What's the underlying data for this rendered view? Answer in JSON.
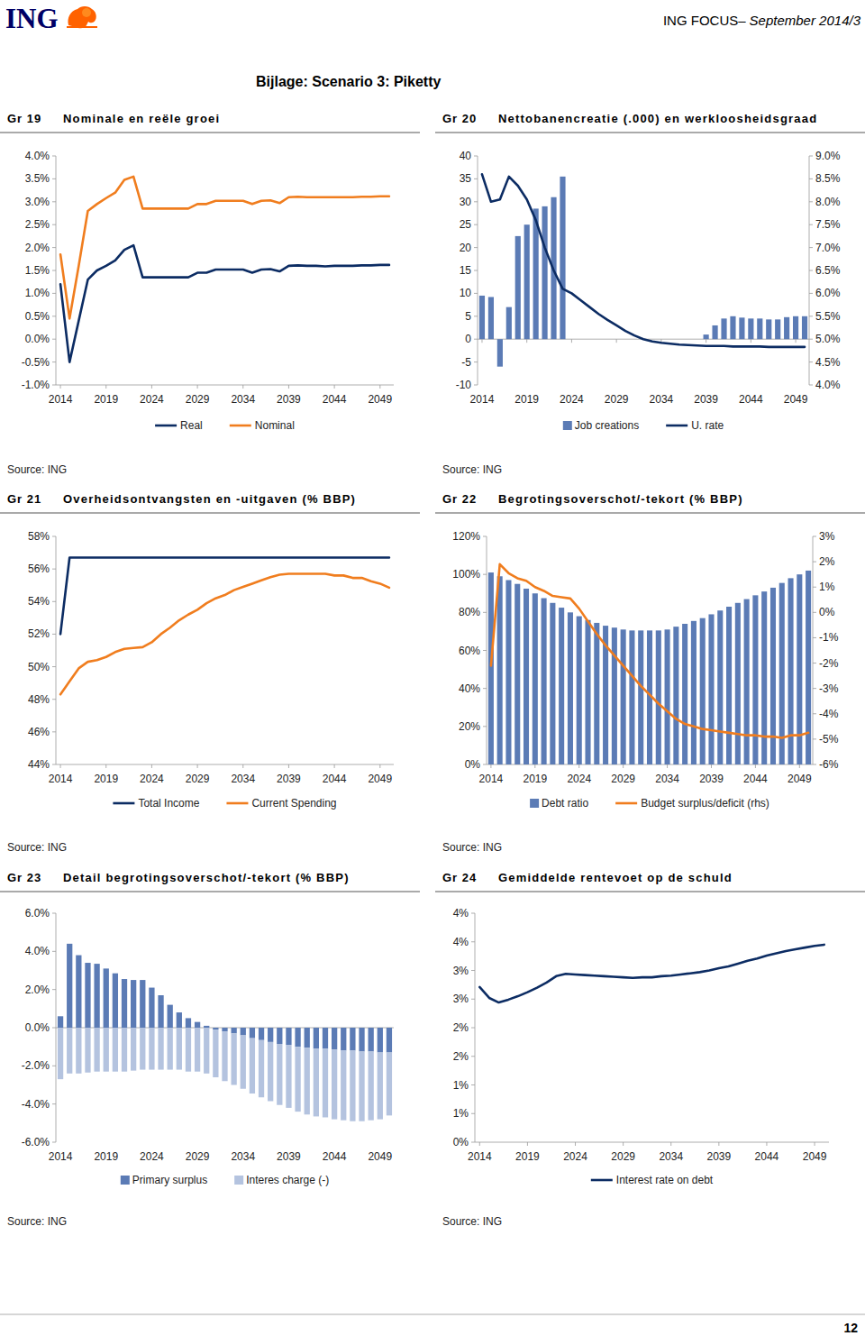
{
  "page": {
    "logo": "ING",
    "header_title": "ING FOCUS–",
    "header_issue": "September 2014/3",
    "heading": "Bijlage: Scenario 3: Piketty",
    "page_number": "12"
  },
  "chart_data": [
    {
      "type": "line",
      "label": "Gr 19",
      "title": "Nominale en reële groei",
      "source": "Source: ING",
      "x": [
        2014,
        2015,
        2016,
        2017,
        2018,
        2019,
        2020,
        2021,
        2022,
        2023,
        2024,
        2025,
        2026,
        2027,
        2028,
        2029,
        2030,
        2031,
        2032,
        2033,
        2034,
        2035,
        2036,
        2037,
        2038,
        2039,
        2040,
        2041,
        2042,
        2043,
        2044,
        2045,
        2046,
        2047,
        2048,
        2049,
        2050
      ],
      "xlim": [
        2013.5,
        2050.5
      ],
      "xticks": [
        2014,
        2019,
        2024,
        2029,
        2034,
        2039,
        2044,
        2049
      ],
      "ylim": [
        -1,
        4
      ],
      "yticks": [
        {
          "value": -1,
          "label": "-1.0%"
        },
        {
          "value": -0.5,
          "label": "-0.5%"
        },
        {
          "value": 0,
          "label": "0.0%"
        },
        {
          "value": 0.5,
          "label": "0.5%"
        },
        {
          "value": 1,
          "label": "1.0%"
        },
        {
          "value": 1.5,
          "label": "1.5%"
        },
        {
          "value": 2,
          "label": "2.0%"
        },
        {
          "value": 2.5,
          "label": "2.5%"
        },
        {
          "value": 3,
          "label": "3.0%"
        },
        {
          "value": 3.5,
          "label": "3.5%"
        },
        {
          "value": 4,
          "label": "4.0%"
        }
      ],
      "grid": false,
      "legend": "bottom",
      "series": [
        {
          "name": "Real",
          "color": "#0c2c63",
          "values": [
            1.2,
            -0.5,
            0.4,
            1.3,
            1.5,
            1.6,
            1.72,
            1.95,
            2.05,
            1.35,
            1.35,
            1.35,
            1.35,
            1.35,
            1.35,
            1.45,
            1.45,
            1.52,
            1.52,
            1.52,
            1.52,
            1.45,
            1.52,
            1.53,
            1.48,
            1.6,
            1.61,
            1.6,
            1.6,
            1.59,
            1.6,
            1.6,
            1.6,
            1.61,
            1.61,
            1.62,
            1.62
          ]
        },
        {
          "name": "Nominal",
          "color": "#f07d1e",
          "values": [
            1.85,
            0.45,
            1.6,
            2.8,
            2.95,
            3.08,
            3.2,
            3.48,
            3.55,
            2.85,
            2.85,
            2.85,
            2.85,
            2.85,
            2.85,
            2.95,
            2.95,
            3.02,
            3.02,
            3.02,
            3.02,
            2.95,
            3.02,
            3.03,
            2.97,
            3.1,
            3.11,
            3.1,
            3.1,
            3.1,
            3.1,
            3.1,
            3.1,
            3.11,
            3.11,
            3.12,
            3.12
          ]
        }
      ]
    },
    {
      "type": "bar",
      "label": "Gr 20",
      "title": "Nettobanencreatie (.000) en werkloosheidsgraad",
      "source": "Source: ING",
      "x": [
        2014,
        2015,
        2016,
        2017,
        2018,
        2019,
        2020,
        2021,
        2022,
        2023,
        2024,
        2025,
        2026,
        2027,
        2028,
        2029,
        2030,
        2031,
        2032,
        2033,
        2034,
        2035,
        2036,
        2037,
        2038,
        2039,
        2040,
        2041,
        2042,
        2043,
        2044,
        2045,
        2046,
        2047,
        2048,
        2049,
        2050
      ],
      "xlim": [
        2013.5,
        2050.5
      ],
      "xticks": [
        2014,
        2019,
        2024,
        2029,
        2034,
        2039,
        2044,
        2049
      ],
      "ylim": [
        -10,
        40
      ],
      "yticks": [
        -10,
        -5,
        0,
        5,
        10,
        15,
        20,
        25,
        30,
        35,
        40
      ],
      "y2lim": [
        4,
        9
      ],
      "y2ticks": [
        {
          "value": 4,
          "label": "4.0%"
        },
        {
          "value": 4.5,
          "label": "4.5%"
        },
        {
          "value": 5,
          "label": "5.0%"
        },
        {
          "value": 5.5,
          "label": "5.5%"
        },
        {
          "value": 6,
          "label": "6.0%"
        },
        {
          "value": 6.5,
          "label": "6.5%"
        },
        {
          "value": 7,
          "label": "7.0%"
        },
        {
          "value": 7.5,
          "label": "7.5%"
        },
        {
          "value": 8,
          "label": "8.0%"
        },
        {
          "value": 8.5,
          "label": "8.5%"
        },
        {
          "value": 9,
          "label": "9.0%"
        }
      ],
      "grid": false,
      "legend": "bottom",
      "series": [
        {
          "name": "Job creations",
          "type": "bar",
          "color": "#5b7bb5",
          "values": [
            9.5,
            9.2,
            -6,
            7,
            22.5,
            25,
            28.5,
            29,
            31,
            35.5,
            0,
            0,
            0,
            0,
            0,
            0,
            0,
            0,
            0,
            0,
            0,
            0,
            0,
            0,
            0,
            1,
            3,
            4.5,
            5,
            4.7,
            4.5,
            4.5,
            4.3,
            4.3,
            4.8,
            5,
            5
          ]
        },
        {
          "name": "U. rate",
          "type": "line",
          "axis": "y2",
          "color": "#0c2c63",
          "values": [
            8.6,
            8.0,
            8.05,
            8.55,
            8.35,
            8.05,
            7.6,
            7.0,
            6.5,
            6.1,
            6.0,
            5.85,
            5.7,
            5.55,
            5.42,
            5.3,
            5.18,
            5.08,
            5.0,
            4.95,
            4.92,
            4.9,
            4.88,
            4.87,
            4.86,
            4.85,
            4.85,
            4.85,
            4.84,
            4.84,
            4.84,
            4.84,
            4.83,
            4.83,
            4.83,
            4.83,
            4.83
          ]
        }
      ]
    },
    {
      "type": "line",
      "label": "Gr 21",
      "title": "Overheidsontvangsten en -uitgaven (% BBP)",
      "source": "Source: ING",
      "x": [
        2014,
        2015,
        2016,
        2017,
        2018,
        2019,
        2020,
        2021,
        2022,
        2023,
        2024,
        2025,
        2026,
        2027,
        2028,
        2029,
        2030,
        2031,
        2032,
        2033,
        2034,
        2035,
        2036,
        2037,
        2038,
        2039,
        2040,
        2041,
        2042,
        2043,
        2044,
        2045,
        2046,
        2047,
        2048,
        2049,
        2050
      ],
      "xlim": [
        2013.5,
        2050.5
      ],
      "xticks": [
        2014,
        2019,
        2024,
        2029,
        2034,
        2039,
        2044,
        2049
      ],
      "ylim": [
        44,
        58
      ],
      "yticks": [
        {
          "value": 44,
          "label": "44%"
        },
        {
          "value": 46,
          "label": "46%"
        },
        {
          "value": 48,
          "label": "48%"
        },
        {
          "value": 50,
          "label": "50%"
        },
        {
          "value": 52,
          "label": "52%"
        },
        {
          "value": 54,
          "label": "54%"
        },
        {
          "value": 56,
          "label": "56%"
        },
        {
          "value": 58,
          "label": "58%"
        }
      ],
      "grid": false,
      "legend": "bottom",
      "series": [
        {
          "name": "Total Income",
          "color": "#0c2c63",
          "values": [
            52,
            56.7,
            56.7,
            56.7,
            56.7,
            56.7,
            56.7,
            56.7,
            56.7,
            56.7,
            56.7,
            56.7,
            56.7,
            56.7,
            56.7,
            56.7,
            56.7,
            56.7,
            56.7,
            56.7,
            56.7,
            56.7,
            56.7,
            56.7,
            56.7,
            56.7,
            56.7,
            56.7,
            56.7,
            56.7,
            56.7,
            56.7,
            56.7,
            56.7,
            56.7,
            56.7,
            56.7
          ]
        },
        {
          "name": "Current Spending",
          "color": "#f07d1e",
          "values": [
            48.3,
            49.1,
            49.9,
            50.3,
            50.4,
            50.6,
            50.9,
            51.1,
            51.15,
            51.2,
            51.5,
            52.0,
            52.4,
            52.85,
            53.2,
            53.5,
            53.9,
            54.2,
            54.4,
            54.7,
            54.9,
            55.1,
            55.3,
            55.5,
            55.65,
            55.7,
            55.7,
            55.7,
            55.7,
            55.7,
            55.6,
            55.6,
            55.45,
            55.45,
            55.25,
            55.1,
            54.85
          ]
        }
      ]
    },
    {
      "type": "bar",
      "label": "Gr 22",
      "title": "Begrotingsoverschot/-tekort (% BBP)",
      "source": "Source: ING",
      "x": [
        2014,
        2015,
        2016,
        2017,
        2018,
        2019,
        2020,
        2021,
        2022,
        2023,
        2024,
        2025,
        2026,
        2027,
        2028,
        2029,
        2030,
        2031,
        2032,
        2033,
        2034,
        2035,
        2036,
        2037,
        2038,
        2039,
        2040,
        2041,
        2042,
        2043,
        2044,
        2045,
        2046,
        2047,
        2048,
        2049,
        2050
      ],
      "xlim": [
        2013.5,
        2050.5
      ],
      "xticks": [
        2014,
        2019,
        2024,
        2029,
        2034,
        2039,
        2044,
        2049
      ],
      "ylim": [
        0,
        120
      ],
      "yticks": [
        {
          "value": 0,
          "label": "0%"
        },
        {
          "value": 20,
          "label": "20%"
        },
        {
          "value": 40,
          "label": "40%"
        },
        {
          "value": 60,
          "label": "60%"
        },
        {
          "value": 80,
          "label": "80%"
        },
        {
          "value": 100,
          "label": "100%"
        },
        {
          "value": 120,
          "label": "120%"
        }
      ],
      "y2lim": [
        -6,
        3
      ],
      "y2ticks": [
        {
          "value": -6,
          "label": "-6%"
        },
        {
          "value": -5,
          "label": "-5%"
        },
        {
          "value": -4,
          "label": "-4%"
        },
        {
          "value": -3,
          "label": "-3%"
        },
        {
          "value": -2,
          "label": "-2%"
        },
        {
          "value": -1,
          "label": "-1%"
        },
        {
          "value": 0,
          "label": "0%"
        },
        {
          "value": 1,
          "label": "1%"
        },
        {
          "value": 2,
          "label": "2%"
        },
        {
          "value": 3,
          "label": "3%"
        }
      ],
      "grid": false,
      "legend": "bottom",
      "series": [
        {
          "name": "Debt ratio",
          "type": "bar",
          "color": "#5b7bb5",
          "values": [
            101,
            99,
            97,
            95,
            92.5,
            90,
            87.5,
            85,
            82.5,
            80,
            78,
            76,
            74.5,
            73,
            72,
            71,
            70.5,
            70.5,
            70.5,
            70.5,
            71,
            72.5,
            74,
            75.5,
            77,
            79,
            81,
            83,
            85,
            87,
            89,
            91,
            93,
            95.5,
            98,
            100,
            102
          ]
        },
        {
          "name": "Budget surplus/deficit (rhs)",
          "type": "line",
          "axis": "y2",
          "color": "#f07d1e",
          "values": [
            -2.1,
            1.9,
            1.55,
            1.35,
            1.25,
            1.0,
            0.85,
            0.65,
            0.6,
            0.55,
            0.15,
            -0.35,
            -0.85,
            -1.3,
            -1.7,
            -2.1,
            -2.5,
            -2.9,
            -3.25,
            -3.6,
            -3.9,
            -4.2,
            -4.4,
            -4.5,
            -4.6,
            -4.65,
            -4.7,
            -4.75,
            -4.8,
            -4.85,
            -4.85,
            -4.9,
            -4.9,
            -4.95,
            -4.85,
            -4.85,
            -4.75
          ]
        }
      ]
    },
    {
      "type": "bar",
      "label": "Gr 23",
      "title": "Detail begrotingsoverschot/-tekort (% BBP)",
      "source": "Source: ING",
      "x": [
        2014,
        2015,
        2016,
        2017,
        2018,
        2019,
        2020,
        2021,
        2022,
        2023,
        2024,
        2025,
        2026,
        2027,
        2028,
        2029,
        2030,
        2031,
        2032,
        2033,
        2034,
        2035,
        2036,
        2037,
        2038,
        2039,
        2040,
        2041,
        2042,
        2043,
        2044,
        2045,
        2046,
        2047,
        2048,
        2049,
        2050
      ],
      "xlim": [
        2013.5,
        2050.5
      ],
      "xticks": [
        2014,
        2019,
        2024,
        2029,
        2034,
        2039,
        2044,
        2049
      ],
      "ylim": [
        -6,
        6
      ],
      "yticks": [
        {
          "value": -6,
          "label": "-6.0%"
        },
        {
          "value": -4,
          "label": "-4.0%"
        },
        {
          "value": -2,
          "label": "-2.0%"
        },
        {
          "value": 0,
          "label": "0.0%"
        },
        {
          "value": 2,
          "label": "2.0%"
        },
        {
          "value": 4,
          "label": "4.0%"
        },
        {
          "value": 6,
          "label": "6.0%"
        }
      ],
      "grid": false,
      "legend": "bottom",
      "stacked": true,
      "series": [
        {
          "name": "Primary surplus",
          "color": "#5b7bb5",
          "values": [
            0.6,
            4.4,
            3.8,
            3.4,
            3.35,
            3.1,
            2.85,
            2.55,
            2.5,
            2.5,
            2.1,
            1.7,
            1.2,
            0.8,
            0.5,
            0.3,
            0.1,
            -0.1,
            -0.2,
            -0.3,
            -0.4,
            -0.55,
            -0.65,
            -0.75,
            -0.85,
            -0.9,
            -1.0,
            -1.05,
            -1.1,
            -1.1,
            -1.15,
            -1.2,
            -1.2,
            -1.25,
            -1.25,
            -1.3,
            -1.3
          ]
        },
        {
          "name": "Interes charge (-)",
          "color": "#b4c3df",
          "values": [
            -2.7,
            -2.4,
            -2.4,
            -2.35,
            -2.3,
            -2.3,
            -2.3,
            -2.3,
            -2.25,
            -2.2,
            -2.2,
            -2.2,
            -2.2,
            -2.2,
            -2.3,
            -2.3,
            -2.4,
            -2.5,
            -2.6,
            -2.7,
            -2.8,
            -2.9,
            -3.0,
            -3.1,
            -3.2,
            -3.3,
            -3.4,
            -3.5,
            -3.55,
            -3.6,
            -3.65,
            -3.65,
            -3.7,
            -3.65,
            -3.6,
            -3.5,
            -3.3
          ]
        }
      ]
    },
    {
      "type": "line",
      "label": "Gr 24",
      "title": "Gemiddelde rentevoet op de schuld",
      "source": "Source: ING",
      "x": [
        2014,
        2015,
        2016,
        2017,
        2018,
        2019,
        2020,
        2021,
        2022,
        2023,
        2024,
        2025,
        2026,
        2027,
        2028,
        2029,
        2030,
        2031,
        2032,
        2033,
        2034,
        2035,
        2036,
        2037,
        2038,
        2039,
        2040,
        2041,
        2042,
        2043,
        2044,
        2045,
        2046,
        2047,
        2048,
        2049,
        2050
      ],
      "xlim": [
        2013.5,
        2050.5
      ],
      "xticks": [
        2014,
        2019,
        2024,
        2029,
        2034,
        2039,
        2044,
        2049
      ],
      "ylim": [
        0,
        4
      ],
      "yticks": [
        {
          "value": 0,
          "label": "0%"
        },
        {
          "value": 0.5,
          "label": "1%"
        },
        {
          "value": 1,
          "label": "1%"
        },
        {
          "value": 1.5,
          "label": "2%"
        },
        {
          "value": 2,
          "label": "2%"
        },
        {
          "value": 2.5,
          "label": "3%"
        },
        {
          "value": 3,
          "label": "3%"
        },
        {
          "value": 3.5,
          "label": "4%"
        },
        {
          "value": 4,
          "label": "4%"
        }
      ],
      "grid": false,
      "legend": "bottom",
      "series": [
        {
          "name": "Interest rate on debt",
          "color": "#0c2c63",
          "values": [
            2.71,
            2.52,
            2.44,
            2.49,
            2.55,
            2.62,
            2.7,
            2.79,
            2.9,
            2.94,
            2.93,
            2.92,
            2.91,
            2.9,
            2.89,
            2.88,
            2.87,
            2.88,
            2.88,
            2.9,
            2.91,
            2.93,
            2.95,
            2.97,
            3.0,
            3.04,
            3.07,
            3.12,
            3.17,
            3.21,
            3.26,
            3.3,
            3.34,
            3.37,
            3.4,
            3.43,
            3.45
          ]
        }
      ]
    }
  ]
}
